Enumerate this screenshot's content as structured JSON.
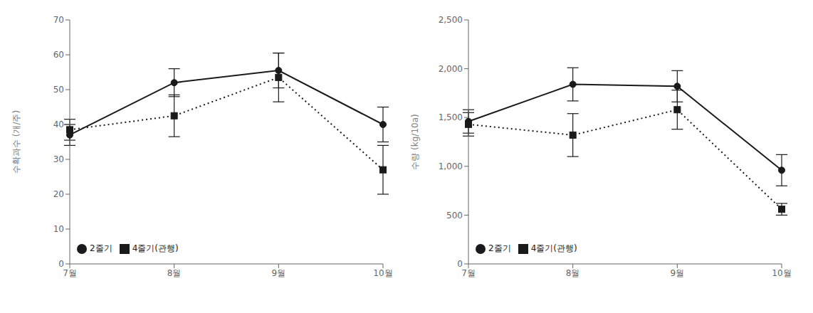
{
  "chart_data": [
    {
      "type": "line",
      "categories": [
        "7월",
        "8월",
        "9월",
        "10월"
      ],
      "ylabel": "수확과수 (개/주)",
      "ylim": [
        0,
        70
      ],
      "yticks": [
        0,
        10,
        20,
        30,
        40,
        50,
        60,
        70
      ],
      "grid": false,
      "legend": "lower left",
      "series": [
        {
          "name": "2줄기",
          "color": "#1a1a1a",
          "marker": "circle",
          "line_style": "solid",
          "values": [
            37,
            52,
            55.5,
            40
          ],
          "errors": [
            3,
            4,
            5,
            5
          ]
        },
        {
          "name": "4줄기(관행)",
          "color": "#1a1a1a",
          "marker": "square",
          "line_style": "dotted",
          "values": [
            38.5,
            42.5,
            53.5,
            27
          ],
          "errors": [
            3,
            6,
            7,
            7
          ]
        }
      ]
    },
    {
      "type": "line",
      "categories": [
        "7월",
        "8월",
        "9월",
        "10월"
      ],
      "ylabel": "수량 (kg/10a)",
      "ylim": [
        0,
        2500
      ],
      "yticks": [
        0,
        500,
        {
          "value": 1000,
          "label": "1,000"
        },
        {
          "value": 1500,
          "label": "1,500"
        },
        {
          "value": 2000,
          "label": "2,000"
        },
        {
          "value": 2500,
          "label": "2,500"
        }
      ],
      "grid": false,
      "legend": "lower left",
      "series": [
        {
          "name": "2줄기",
          "color": "#1a1a1a",
          "marker": "circle",
          "line_style": "solid",
          "values": [
            1460,
            1840,
            1820,
            960
          ],
          "errors": [
            120,
            170,
            160,
            160
          ]
        },
        {
          "name": "4줄기(관행)",
          "color": "#1a1a1a",
          "marker": "square",
          "line_style": "dotted",
          "values": [
            1430,
            1320,
            1580,
            560
          ],
          "errors": [
            120,
            220,
            200,
            60
          ]
        }
      ]
    }
  ]
}
